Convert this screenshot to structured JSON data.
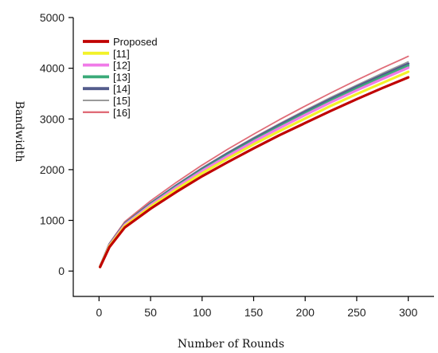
{
  "chart_data": {
    "type": "line",
    "title": "",
    "xlabel": "Number of Rounds",
    "ylabel": "Bandwidth",
    "xlim": [
      -25,
      325
    ],
    "ylim": [
      -500,
      5000
    ],
    "xticks": [
      0,
      50,
      100,
      150,
      200,
      250,
      300
    ],
    "yticks": [
      0,
      1000,
      2000,
      3000,
      4000,
      5000
    ],
    "grid": false,
    "legend_position": "top-left",
    "x": [
      1,
      10,
      25,
      50,
      75,
      100,
      125,
      150,
      175,
      200,
      225,
      250,
      275,
      300
    ],
    "series": [
      {
        "name": "Proposed",
        "color": "#c00000",
        "width": 3.2,
        "values": [
          80,
          470,
          860,
          1230,
          1560,
          1870,
          2150,
          2420,
          2680,
          2920,
          3160,
          3390,
          3610,
          3820
        ]
      },
      {
        "name": "[11]",
        "color": "#f2f22a",
        "width": 3.2,
        "values": [
          82,
          490,
          890,
          1270,
          1610,
          1930,
          2220,
          2500,
          2760,
          3010,
          3260,
          3490,
          3710,
          3930
        ]
      },
      {
        "name": "[12]",
        "color": "#f07ae8",
        "width": 3.2,
        "values": [
          84,
          505,
          915,
          1300,
          1650,
          1975,
          2270,
          2555,
          2820,
          3080,
          3330,
          3565,
          3790,
          4010
        ]
      },
      {
        "name": "[13]",
        "color": "#3aaa78",
        "width": 3.2,
        "values": [
          85,
          510,
          925,
          1315,
          1665,
          1995,
          2295,
          2580,
          2850,
          3110,
          3360,
          3600,
          3830,
          4050
        ]
      },
      {
        "name": "[14]",
        "color": "#545c8c",
        "width": 3.2,
        "values": [
          86,
          520,
          935,
          1330,
          1685,
          2015,
          2320,
          2605,
          2880,
          3140,
          3395,
          3635,
          3865,
          4090
        ]
      },
      {
        "name": "[15]",
        "color": "#9a9a9a",
        "width": 1.4,
        "values": [
          88,
          530,
          950,
          1350,
          1705,
          2040,
          2345,
          2635,
          2910,
          3175,
          3430,
          3670,
          3905,
          4130
        ]
      },
      {
        "name": "[16]",
        "color": "#e06c78",
        "width": 1.8,
        "values": [
          90,
          545,
          975,
          1385,
          1750,
          2090,
          2405,
          2700,
          2985,
          3255,
          3515,
          3765,
          4005,
          4235
        ]
      }
    ]
  }
}
